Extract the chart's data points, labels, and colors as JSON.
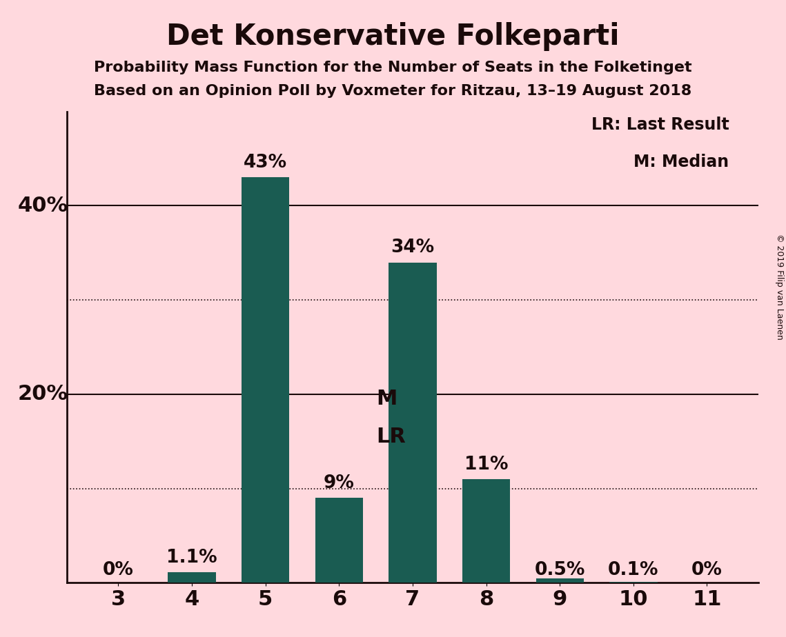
{
  "title": "Det Konservative Folkeparti",
  "subtitle1": "Probability Mass Function for the Number of Seats in the Folketinget",
  "subtitle2": "Based on an Opinion Poll by Voxmeter for Ritzau, 13–19 August 2018",
  "copyright": "© 2019 Filip van Laenen",
  "categories": [
    3,
    4,
    5,
    6,
    7,
    8,
    9,
    10,
    11
  ],
  "values": [
    0.0,
    1.1,
    43.0,
    9.0,
    34.0,
    11.0,
    0.5,
    0.1,
    0.0
  ],
  "bar_color": "#1a5c52",
  "background_color": "#ffd9de",
  "text_color": "#1a0a0a",
  "ylim": [
    0,
    50
  ],
  "ytick_labeled": [
    20,
    40
  ],
  "ytick_dotted": [
    10,
    30
  ],
  "legend_lr": "LR: Last Result",
  "legend_m": "M: Median",
  "median_seat": 6,
  "last_result_seat": 6,
  "bar_labels": [
    "0%",
    "1.1%",
    "43%",
    "9%",
    "34%",
    "11%",
    "0.5%",
    "0.1%",
    "0%"
  ],
  "median_label": "M",
  "lr_label": "LR"
}
